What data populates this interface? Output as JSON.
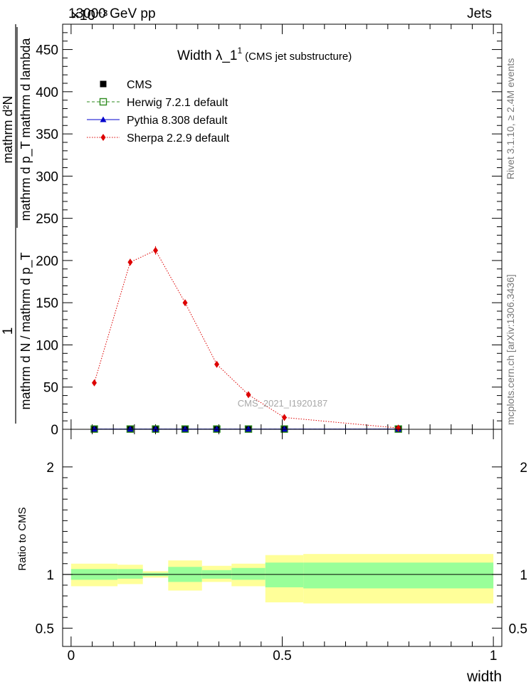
{
  "header": {
    "exponent_label": "×10⁻³",
    "energy_label": "13000 GeV pp",
    "category_label": "Jets"
  },
  "side_text": {
    "rivet": "Rivet 3.1.10, ≥ 2.4M events",
    "mcplots": "mcplots.cern.ch [arXiv:1306.3436]"
  },
  "ylabel_top": {
    "numerator_main": "1",
    "left_fraction_denominator": "mathrm d N / mathrm d p_T",
    "right_fraction_numerator": "mathrm d²N",
    "right_fraction_denominator": "mathrm d p_T mathrm d lambda"
  },
  "chart_data": [
    {
      "type": "line",
      "title": "Width λ_1¹ (CMS jet substructure)",
      "title_main": "Width λ_1",
      "title_sup": "1",
      "title_small": "(CMS jet substructure)",
      "watermark": "CMS_2021_I1920187",
      "xlim": [
        -0.02,
        1.02
      ],
      "ylim": [
        0,
        480
      ],
      "y_ticks": [
        0,
        50,
        100,
        150,
        200,
        250,
        300,
        350,
        400,
        450
      ],
      "legend_position": "top-left",
      "legend": [
        {
          "label": "CMS",
          "color": "#000000",
          "marker": "square-filled",
          "line": "none"
        },
        {
          "label": "Herwig 7.2.1 default",
          "color": "#2e8b1f",
          "marker": "square-open",
          "line": "dashed"
        },
        {
          "label": "Pythia 8.308 default",
          "color": "#0000cc",
          "marker": "triangle",
          "line": "solid"
        },
        {
          "label": "Sherpa 2.2.9 default",
          "color": "#dd0000",
          "marker": "diamond",
          "line": "dotted"
        }
      ],
      "series": [
        {
          "name": "CMS",
          "x": [
            0.055,
            0.14,
            0.2,
            0.27,
            0.345,
            0.42,
            0.505,
            0.775
          ],
          "y": [
            0.3,
            0.3,
            0.3,
            0.3,
            0.3,
            0.3,
            0.3,
            0.3
          ]
        },
        {
          "name": "Herwig 7.2.1 default",
          "x": [
            0.055,
            0.14,
            0.2,
            0.27,
            0.345,
            0.42,
            0.505,
            0.775
          ],
          "y": [
            0.3,
            0.3,
            0.3,
            0.3,
            0.3,
            0.3,
            0.3,
            0.3
          ]
        },
        {
          "name": "Pythia 8.308 default",
          "x": [
            0.055,
            0.14,
            0.2,
            0.27,
            0.345,
            0.42,
            0.505,
            0.775
          ],
          "y": [
            0.3,
            0.3,
            0.3,
            0.3,
            0.3,
            0.3,
            0.3,
            0.3
          ]
        },
        {
          "name": "Sherpa 2.2.9 default",
          "x": [
            0.055,
            0.14,
            0.2,
            0.27,
            0.345,
            0.42,
            0.505,
            0.775
          ],
          "y": [
            55,
            198,
            212,
            150,
            77,
            41,
            14,
            1.5
          ],
          "yerr": [
            2,
            4,
            5,
            3,
            2,
            1.5,
            1,
            0.5
          ]
        }
      ]
    },
    {
      "type": "area",
      "ylabel": "Ratio to CMS",
      "xlabel": "width",
      "xlim": [
        -0.02,
        1.02
      ],
      "ylim": [
        0.33,
        2.35
      ],
      "x_ticks": [
        0,
        0.5,
        1
      ],
      "x_tick_labels": [
        "0",
        "0.5",
        "1"
      ],
      "y_ticks": [
        0.5,
        1,
        2
      ],
      "y_tick_labels": [
        "0.5",
        "1",
        "2"
      ],
      "band_colors": {
        "stat": "#99ff99",
        "total": "#ffff99"
      },
      "bins": [
        {
          "lo": 0.0,
          "hi": 0.11,
          "inner": [
            0.95,
            1.05
          ],
          "outer": [
            0.89,
            1.1
          ]
        },
        {
          "lo": 0.11,
          "hi": 0.17,
          "inner": [
            0.96,
            1.05
          ],
          "outer": [
            0.91,
            1.09
          ]
        },
        {
          "lo": 0.17,
          "hi": 0.23,
          "inner": [
            0.985,
            1.015
          ],
          "outer": [
            0.97,
            1.03
          ]
        },
        {
          "lo": 0.23,
          "hi": 0.31,
          "inner": [
            0.93,
            1.07
          ],
          "outer": [
            0.85,
            1.13
          ]
        },
        {
          "lo": 0.31,
          "hi": 0.38,
          "inner": [
            0.96,
            1.04
          ],
          "outer": [
            0.93,
            1.08
          ]
        },
        {
          "lo": 0.38,
          "hi": 0.46,
          "inner": [
            0.95,
            1.06
          ],
          "outer": [
            0.89,
            1.1
          ]
        },
        {
          "lo": 0.46,
          "hi": 0.55,
          "inner": [
            0.88,
            1.11
          ],
          "outer": [
            0.74,
            1.18
          ]
        },
        {
          "lo": 0.55,
          "hi": 1.0,
          "inner": [
            0.87,
            1.11
          ],
          "outer": [
            0.73,
            1.19
          ]
        }
      ]
    }
  ]
}
